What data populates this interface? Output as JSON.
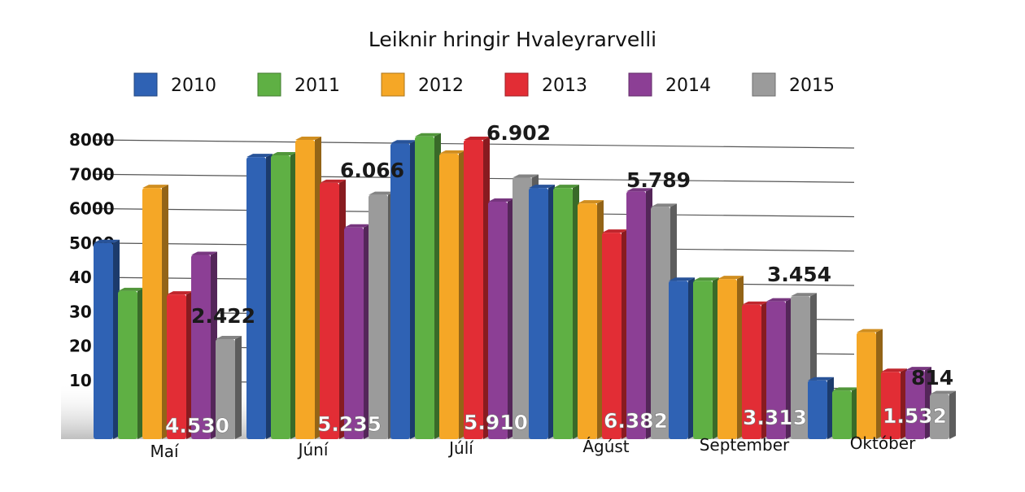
{
  "chart_data": {
    "type": "bar",
    "title": "Leiknir hringir Hvaleyrarvelli",
    "categories": [
      "Maí",
      "Júní",
      "Júlí",
      "Ágúst",
      "September",
      "Október"
    ],
    "series": [
      {
        "name": "2010",
        "color": "#2f62b4",
        "values": [
          5000,
          7500,
          7900,
          6600,
          3900,
          1000
        ]
      },
      {
        "name": "2011",
        "color": "#5fb044",
        "values": [
          3600,
          7550,
          8100,
          6600,
          3900,
          700
        ]
      },
      {
        "name": "2012",
        "color": "#f5a726",
        "values": [
          6600,
          8000,
          7600,
          6150,
          3950,
          2400
        ]
      },
      {
        "name": "2013",
        "color": "#e22d35",
        "values": [
          3500,
          6750,
          8000,
          5300,
          3200,
          1250
        ]
      },
      {
        "name": "2014",
        "color": "#8c3f95",
        "values": [
          4650,
          5450,
          6200,
          6500,
          3300,
          1300
        ]
      },
      {
        "name": "2015",
        "color": "#9b9b9b",
        "values": [
          2200,
          6400,
          6900,
          6050,
          3450,
          600
        ]
      }
    ],
    "ylim": [
      0,
      8000
    ],
    "yticks": [
      "8000",
      "7000",
      "6000",
      "5000",
      "40",
      "30",
      "20",
      "10"
    ],
    "grid": true,
    "legend_position": "top",
    "annotations": {
      "top": [
        "2.422",
        "6.066",
        "6.902",
        "5.789",
        "3.454",
        "814"
      ],
      "bottom": [
        "4.530",
        "5.235",
        "5.910",
        "6.382",
        "3.313",
        "1.532"
      ]
    }
  }
}
